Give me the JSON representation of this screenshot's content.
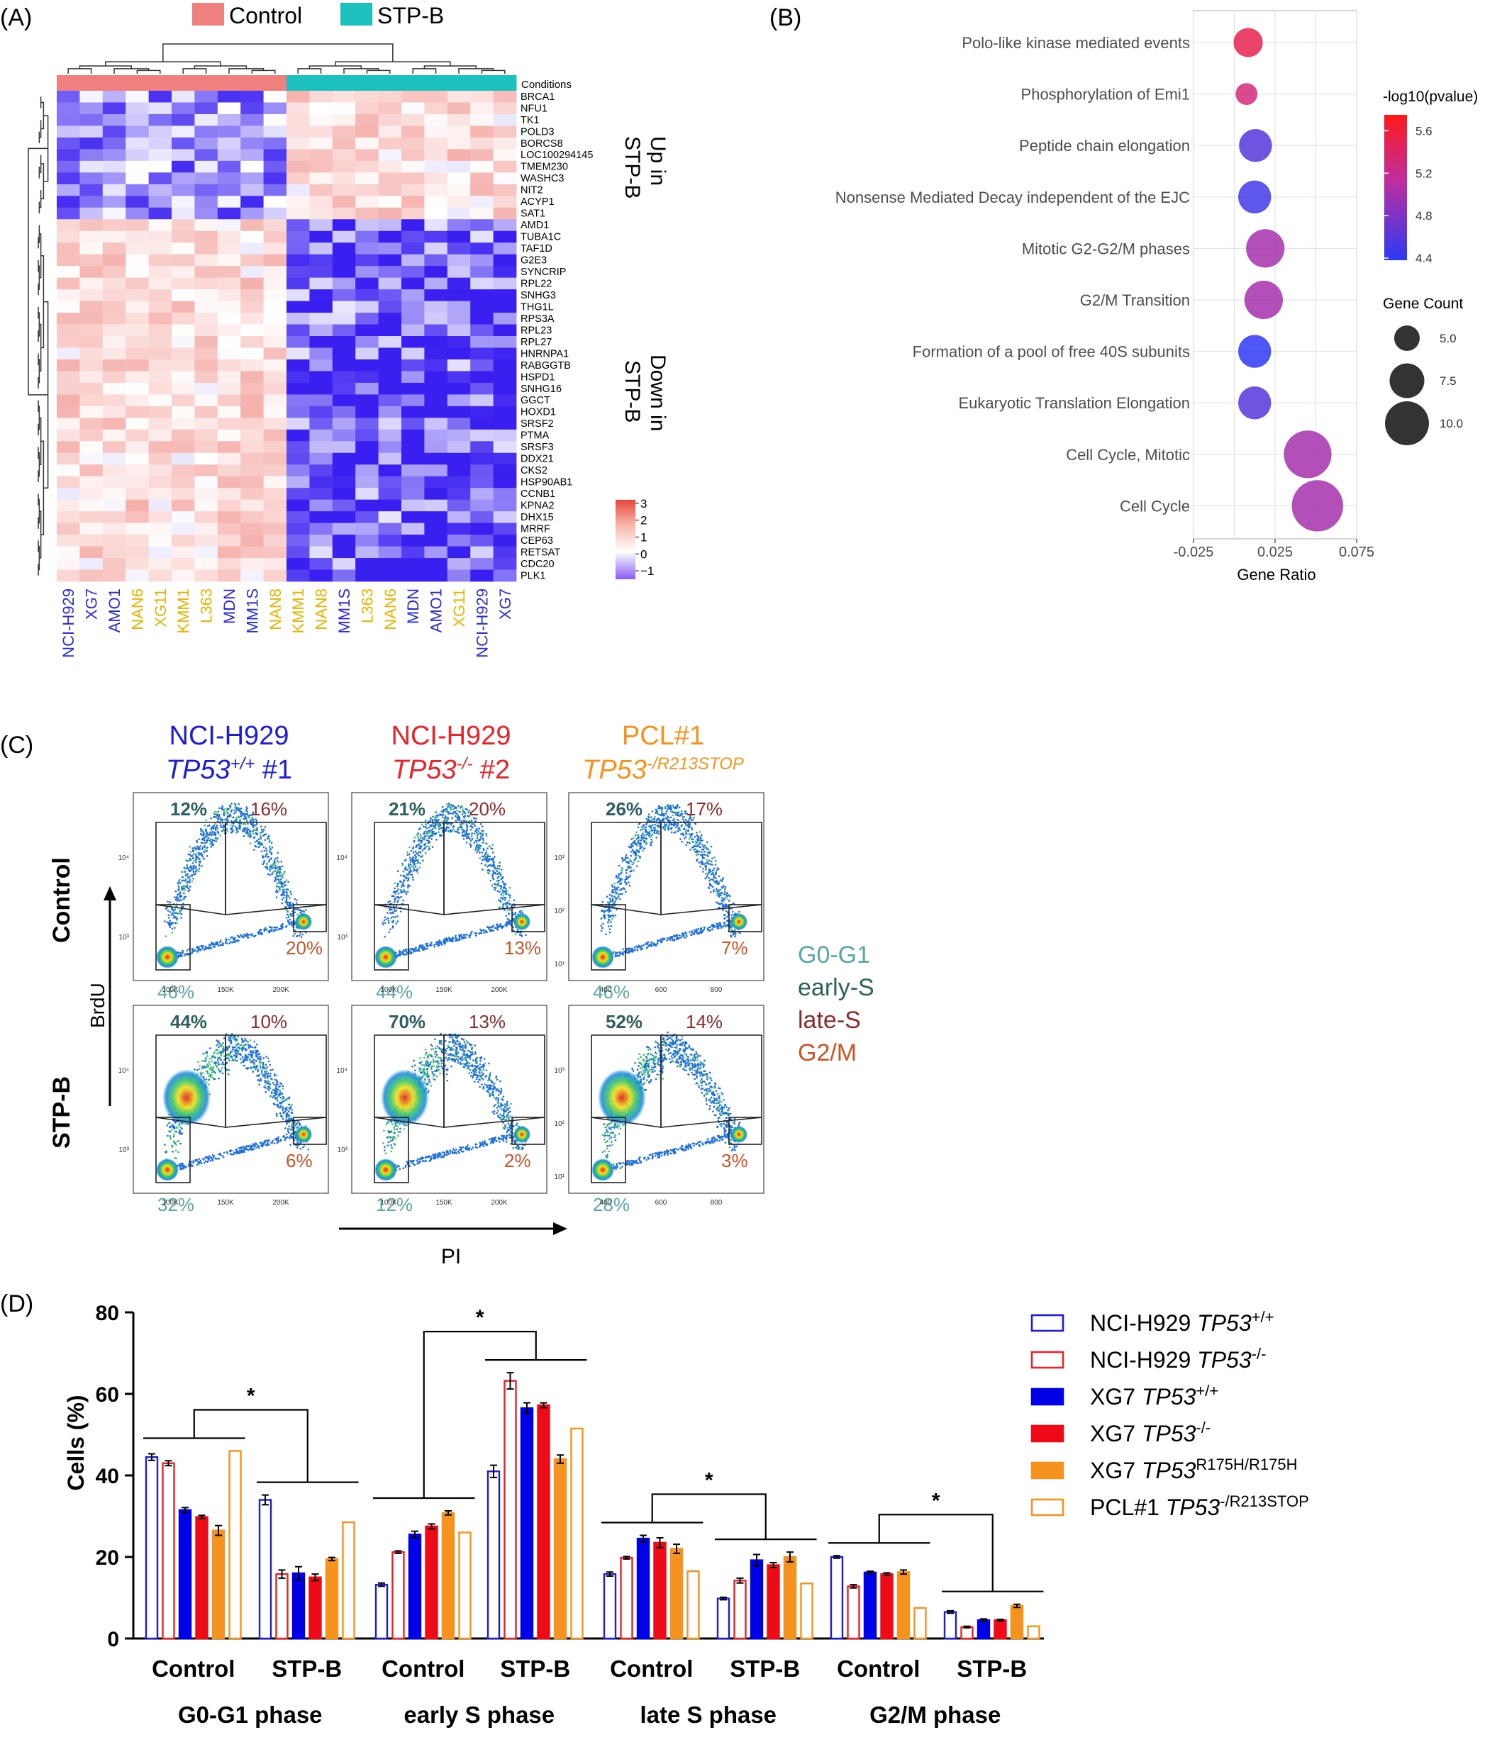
{
  "panel_labels": {
    "A": "(A)",
    "B": "(B)",
    "C": "(C)",
    "D": "(D)"
  },
  "colors": {
    "control": "#F08080",
    "stpb": "#1CC1BE",
    "nci_wt": "#1D1DD8",
    "nci_ko": "#E8232A",
    "xg7_wt": "#0000E6",
    "xg7_ko": "#EE0A17",
    "xg7_r175": "#F5931E",
    "pcl": "#F5931E",
    "label_blue": "#2B2BD6",
    "label_gold": "#E6B400",
    "g0g1": "#5BA6A6",
    "earlyS": "#2E5E5E",
    "lateS": "#8B2C2C",
    "g2m": "#C8552A"
  },
  "chart_data": [
    {
      "type": "heatmap",
      "panel": "A",
      "legend_items": [
        "Control",
        "STP-B"
      ],
      "conditions_label": "Conditions",
      "columns": [
        "NCI-H929",
        "XG7",
        "AMO1",
        "NAN6",
        "XG11",
        "KMM1",
        "L363",
        "MDN",
        "MM1S",
        "NAN8",
        "KMM1",
        "NAN8",
        "MM1S",
        "L363",
        "NAN6",
        "MDN",
        "AMO1",
        "XG11",
        "NCI-H929",
        "XG7"
      ],
      "column_colors": [
        "blue",
        "blue",
        "blue",
        "gold",
        "gold",
        "gold",
        "gold",
        "blue",
        "blue",
        "gold",
        "gold",
        "gold",
        "blue",
        "gold",
        "gold",
        "blue",
        "blue",
        "gold",
        "blue",
        "blue"
      ],
      "column_conditions": [
        "Control",
        "Control",
        "Control",
        "Control",
        "Control",
        "Control",
        "Control",
        "Control",
        "Control",
        "Control",
        "STP-B",
        "STP-B",
        "STP-B",
        "STP-B",
        "STP-B",
        "STP-B",
        "STP-B",
        "STP-B",
        "STP-B",
        "STP-B"
      ],
      "genes_up": [
        "BRCA1",
        "NFU1",
        "TK1",
        "POLD3",
        "BORCS8",
        "LOC100294145",
        "TMEM230",
        "WASHC3",
        "NIT2",
        "ACYP1",
        "SAT1"
      ],
      "genes_down": [
        "AMD1",
        "TUBA1C",
        "TAF1D",
        "G2E3",
        "SYNCRIP",
        "RPL22",
        "SNHG3",
        "THG1L",
        "RPS3A",
        "RPL23",
        "RPL27",
        "HNRNPA1",
        "RABGGTB",
        "HSPD1",
        "SNHG16",
        "GGCT",
        "HOXD1",
        "SRSF2",
        "PTMA",
        "SRSF3",
        "DDX21",
        "CKS2",
        "HSP90AB1",
        "CCNB1",
        "KPNA2",
        "DHX15",
        "MRRF",
        "CEP63",
        "RETSAT",
        "CDC20",
        "PLK1"
      ],
      "group_labels": {
        "up": [
          "Up in",
          "STP-B"
        ],
        "down": [
          "Down in",
          "STP-B"
        ]
      },
      "scale_ticks": [
        "3",
        "2",
        "1",
        "0",
        "−1"
      ],
      "scale_range": [
        -1.5,
        3.2
      ]
    },
    {
      "type": "scatter",
      "panel": "B",
      "categories": [
        "Polo-like kinase mediated events",
        "Phosphorylation of Emi1",
        "Peptide chain elongation",
        "Nonsense Mediated Decay independent of the EJC",
        "Mitotic G2-G2/M phases",
        "G2/M Transition",
        "Formation of a pool of free 40S subunits",
        "Eukaryotic Translation Elongation",
        "Cell Cycle, Mitotic",
        "Cell Cycle"
      ],
      "gene_ratio": [
        0.0085,
        0.0075,
        0.013,
        0.0125,
        0.019,
        0.018,
        0.0125,
        0.0125,
        0.045,
        0.051
      ],
      "neg_log10_p": [
        5.5,
        5.3,
        4.6,
        4.5,
        5.0,
        5.0,
        4.4,
        4.6,
        5.0,
        5.0
      ],
      "gene_count": [
        6,
        4,
        7,
        7,
        8.5,
        8.5,
        7,
        7,
        11,
        12
      ],
      "xlabel": "Gene Ratio",
      "xticks": [
        "-0.025",
        "0.025",
        "0.075"
      ],
      "xlim": [
        -0.025,
        0.075
      ],
      "color_legend_title": "-log10(pvalue)",
      "color_ticks": [
        "5.6",
        "5.2",
        "4.8",
        "4.4"
      ],
      "color_range": [
        4.38,
        5.75
      ],
      "size_legend_title": "Gene Count",
      "size_ticks": [
        "5.0",
        "7.5",
        "10.0"
      ],
      "grid": true
    },
    {
      "type": "bar",
      "panel": "D",
      "ylabel": "Cells (%)",
      "ylim": [
        0,
        80
      ],
      "yticks": [
        "0",
        "20",
        "40",
        "60",
        "80"
      ],
      "treatments": [
        "Control",
        "STP-B"
      ],
      "phases": [
        "G0-G1 phase",
        "early S phase",
        "late S phase",
        "G2/M phase"
      ],
      "series": [
        {
          "name": "NCI-H929 TP53+/+",
          "base": "NCI-H929 ",
          "italic": "TP53",
          "sup": "+/+",
          "style": "open",
          "color": "#1D1DD8",
          "values": [
            44.5,
            34,
            13.2,
            41,
            15.8,
            9.8,
            20,
            6.5
          ],
          "err": [
            0.8,
            1.2,
            0.4,
            1.5,
            0.5,
            0.3,
            0.3,
            0.3
          ]
        },
        {
          "name": "NCI-H929 TP53-/-",
          "base": "NCI-H929 ",
          "italic": "TP53",
          "sup": "-/-",
          "style": "open",
          "color": "#E8232A",
          "values": [
            43,
            15.8,
            21.2,
            63.2,
            19.8,
            14.2,
            12.8,
            2.8
          ],
          "err": [
            0.6,
            1,
            0.3,
            2,
            0.3,
            0.6,
            0.4,
            0.2
          ]
        },
        {
          "name": "XG7 TP53+/+",
          "base": "XG7 ",
          "italic": "TP53",
          "sup": "+/+",
          "style": "solid",
          "color": "#0000E6",
          "values": [
            31.5,
            16,
            25.5,
            56.5,
            24.5,
            19.2,
            16.2,
            4.5
          ],
          "err": [
            0.6,
            1.6,
            0.8,
            1.3,
            0.8,
            1.4,
            0.3,
            0.3
          ]
        },
        {
          "name": "XG7 TP53-/-",
          "base": "XG7 ",
          "italic": "TP53",
          "sup": "-/-",
          "style": "solid",
          "color": "#EE0A17",
          "values": [
            29.8,
            15,
            27.5,
            57.2,
            23.5,
            18,
            15.8,
            4.5
          ],
          "err": [
            0.4,
            0.8,
            0.6,
            0.6,
            1.2,
            0.6,
            0.3,
            0.2
          ]
        },
        {
          "name": "XG7 TP53R175H/R175H",
          "base": "XG7 ",
          "italic": "TP53",
          "sup": "R175H/R175H",
          "style": "solid",
          "color": "#F5931E",
          "values": [
            26.5,
            19.5,
            30.8,
            44,
            22,
            20,
            16.3,
            8
          ],
          "err": [
            1.2,
            0.4,
            0.5,
            1,
            1.1,
            1.2,
            0.5,
            0.4
          ]
        },
        {
          "name": "PCL#1 TP53-/R213STOP",
          "base": "PCL#1 ",
          "italic": "TP53",
          "sup": "-/R213STOP",
          "style": "open",
          "color": "#F5931E",
          "values": [
            46,
            28.5,
            26,
            51.5,
            16.5,
            13.5,
            7.5,
            3
          ],
          "err": [
            0,
            0,
            0,
            0,
            0,
            0,
            0,
            0
          ]
        }
      ],
      "significance": "*"
    }
  ],
  "panel_c": {
    "columns": [
      {
        "line1": "NCI-H929",
        "gene": "TP53",
        "sup": "+/+",
        "suffix": " #1",
        "color": "#1D1DD8",
        "xticks": [
          "100K",
          "150K",
          "200K"
        ],
        "yticks": [
          "10⁴",
          "10³"
        ]
      },
      {
        "line1": "NCI-H929",
        "gene": "TP53",
        "sup": "-/-",
        "suffix": " #2",
        "color": "#E8232A",
        "xticks": [
          "100K",
          "150K",
          "200K"
        ],
        "yticks": [
          "10⁴",
          "10³"
        ]
      },
      {
        "line1": "PCL#1",
        "gene": "TP53",
        "sup": "-/R213STOP",
        "suffix": "",
        "color": "#F5931E",
        "xticks": [
          "400",
          "600",
          "800"
        ],
        "yticks": [
          "10³",
          "10²",
          "10¹"
        ]
      }
    ],
    "rows": [
      "Control",
      "STP-B"
    ],
    "plots": [
      [
        {
          "early": "12%",
          "late": "16%",
          "g2m": "20%",
          "g0": "46%"
        },
        {
          "early": "21%",
          "late": "20%",
          "g2m": "13%",
          "g0": "44%"
        },
        {
          "early": "26%",
          "late": "17%",
          "g2m": "7%",
          "g0": "46%"
        }
      ],
      [
        {
          "early": "44%",
          "late": "10%",
          "g2m": "6%",
          "g0": "32%"
        },
        {
          "early": "70%",
          "late": "13%",
          "g2m": "2%",
          "g0": "12%"
        },
        {
          "early": "52%",
          "late": "14%",
          "g2m": "3%",
          "g0": "28%"
        }
      ]
    ],
    "y_axis_label": "BrdU",
    "x_axis_label": "PI",
    "legend": [
      "G0-G1",
      "early-S",
      "late-S",
      "G2/M"
    ]
  }
}
